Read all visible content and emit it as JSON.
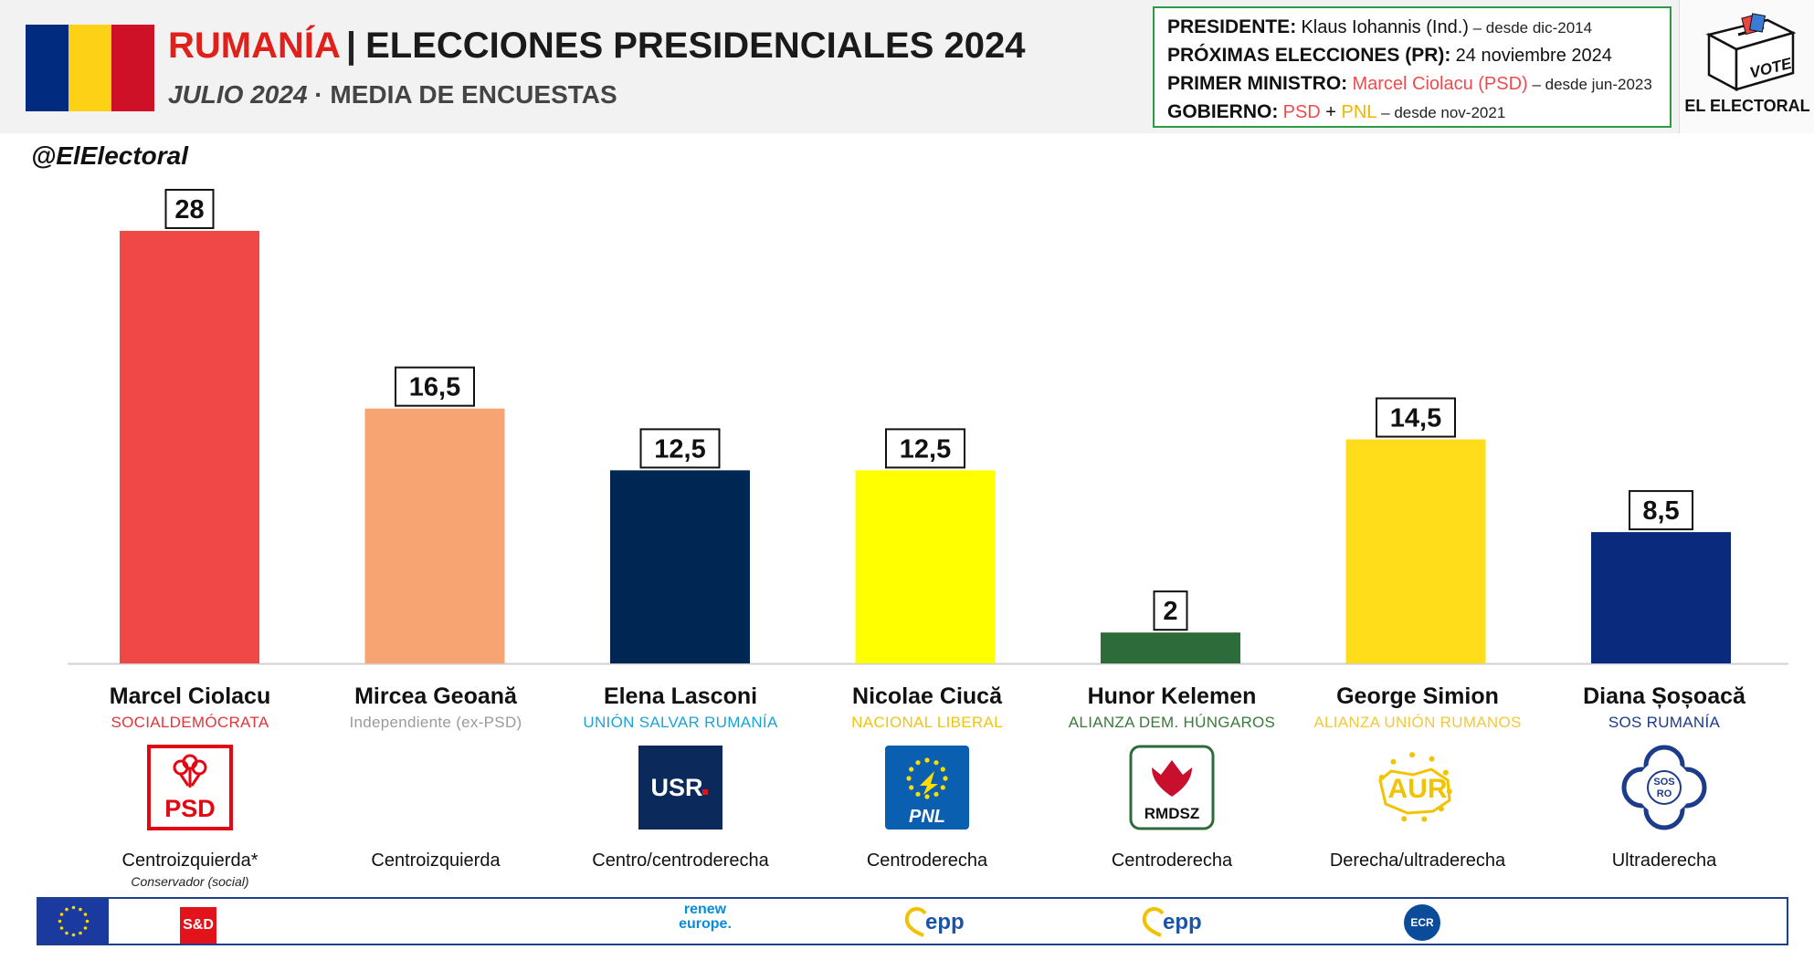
{
  "header": {
    "title_country": "RUMANÍA",
    "title_separator": "|",
    "title_rest": "ELECCIONES PRESIDENCIALES 2024",
    "subtitle_date": "JULIO 2024",
    "subtitle_separator": " · ",
    "subtitle_rest": "MEDIA DE ENCUESTAS",
    "flag_colors": [
      "#002B7F",
      "#FCD116",
      "#CE1126"
    ]
  },
  "info_box": {
    "president_label": "PRESIDENTE:",
    "president_value": "Klaus Iohannis (Ind.)",
    "president_since": " – desde dic-2014",
    "next_label": "PRÓXIMAS ELECCIONES (PR):",
    "next_value": "24 noviembre 2024",
    "pm_label": "PRIMER MINISTRO:",
    "pm_value": "Marcel Ciolacu (PSD)",
    "pm_since": " – desde jun-2023",
    "gov_label": "GOBIERNO:",
    "gov_party1": "PSD",
    "gov_plus": " + ",
    "gov_party2": "PNL",
    "gov_since": " – desde nov-2021",
    "border_color": "#2f9a44"
  },
  "brand": {
    "vote_text": "VOTE",
    "name": "EL ELECTORAL",
    "handle": "@ElElectoral"
  },
  "chart_data": {
    "type": "bar",
    "categories": [
      "Marcel Ciolacu",
      "Mircea Geoană",
      "Elena Lasconi",
      "Nicolae Ciucă",
      "Hunor Kelemen",
      "George Simion",
      "Diana Șoșoacă"
    ],
    "values": [
      28,
      16.5,
      12.5,
      12.5,
      2,
      14.5,
      8.5
    ],
    "value_labels": [
      "28",
      "16,5",
      "12,5",
      "12,5",
      "2",
      "14,5",
      "8,5"
    ],
    "colors": [
      "#F04747",
      "#F7A472",
      "#002654",
      "#FFFF00",
      "#2E6B3A",
      "#FFDD1A",
      "#0A2A7D"
    ],
    "ylim": [
      0,
      30
    ],
    "grid": false,
    "legend": "none"
  },
  "candidates": [
    {
      "name": "Marcel Ciolacu",
      "party": "SOCIALDEMÓCRATA",
      "party_color": "#e2343b",
      "ideology": "Centroizquierda*",
      "note": "Conservador (social)",
      "logo": "psd-rose-icon",
      "logo_text": "PSD"
    },
    {
      "name": "Mircea Geoană",
      "party": "Independiente (ex-PSD)",
      "party_color": "#9a9a9a",
      "ideology": "Centroizquierda",
      "note": "",
      "logo": "",
      "logo_text": ""
    },
    {
      "name": "Elena Lasconi",
      "party": "UNIÓN SALVAR RUMANÍA",
      "party_color": "#1aa3d9",
      "ideology": "Centro/centroderecha",
      "note": "",
      "logo": "usr-icon",
      "logo_text": "USR"
    },
    {
      "name": "Nicolae Ciucă",
      "party": "NACIONAL LIBERAL",
      "party_color": "#f1c40f",
      "ideology": "Centroderecha",
      "note": "",
      "logo": "pnl-icon",
      "logo_text": "PNL"
    },
    {
      "name": "Hunor Kelemen",
      "party": "ALIANZA DEM. HÚNGAROS",
      "party_color": "#3a7a3a",
      "ideology": "Centroderecha",
      "note": "",
      "logo": "rmdsz-tulip-icon",
      "logo_text": "RMDSZ"
    },
    {
      "name": "George Simion",
      "party": "ALIANZA UNIÓN RUMANOS",
      "party_color": "#f3c83a",
      "ideology": "Derecha/ultraderecha",
      "note": "",
      "logo": "aur-icon",
      "logo_text": "AUR"
    },
    {
      "name": "Diana Șoșoacă",
      "party": "SOS RUMANÍA",
      "party_color": "#1c3b8a",
      "ideology": "Ultraderecha",
      "note": "",
      "logo": "sos-ro-icon",
      "logo_text": "SOS RO"
    }
  ],
  "footer": {
    "eu_flag": "eu-flag-icon",
    "sd_text": "S&D",
    "renew_line1": "renew",
    "renew_line2": "europe.",
    "epp_text": "epp",
    "ecr_text": "ECR"
  }
}
